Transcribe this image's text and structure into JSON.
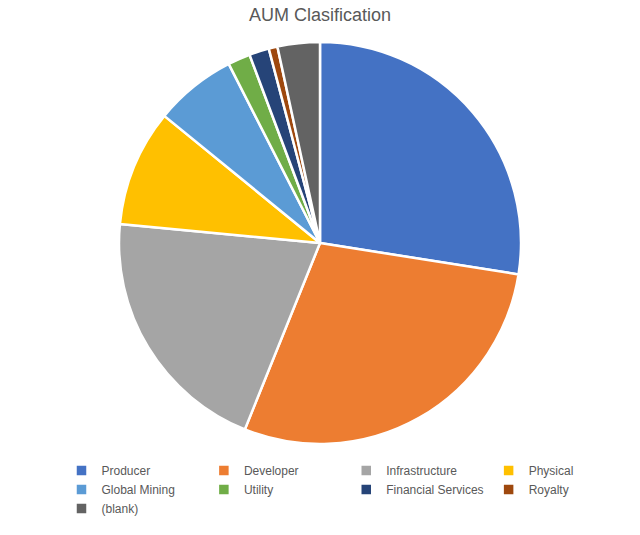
{
  "chart_data": {
    "type": "pie",
    "title": "AUM Clasification",
    "categories": [
      "Producer",
      "Developer",
      "Infrastructure",
      "Physical",
      "Global Mining",
      "Utility",
      "Financial Services",
      "Royalty",
      "(blank)"
    ],
    "values": [
      27.5,
      28.6,
      20.4,
      9.4,
      6.6,
      1.8,
      1.6,
      0.7,
      3.4
    ],
    "colors": [
      "#4472c4",
      "#ed7d31",
      "#a5a5a5",
      "#ffc000",
      "#5b9bd5",
      "#70ad47",
      "#264478",
      "#9e480e",
      "#636363"
    ],
    "legend": "bottom"
  }
}
